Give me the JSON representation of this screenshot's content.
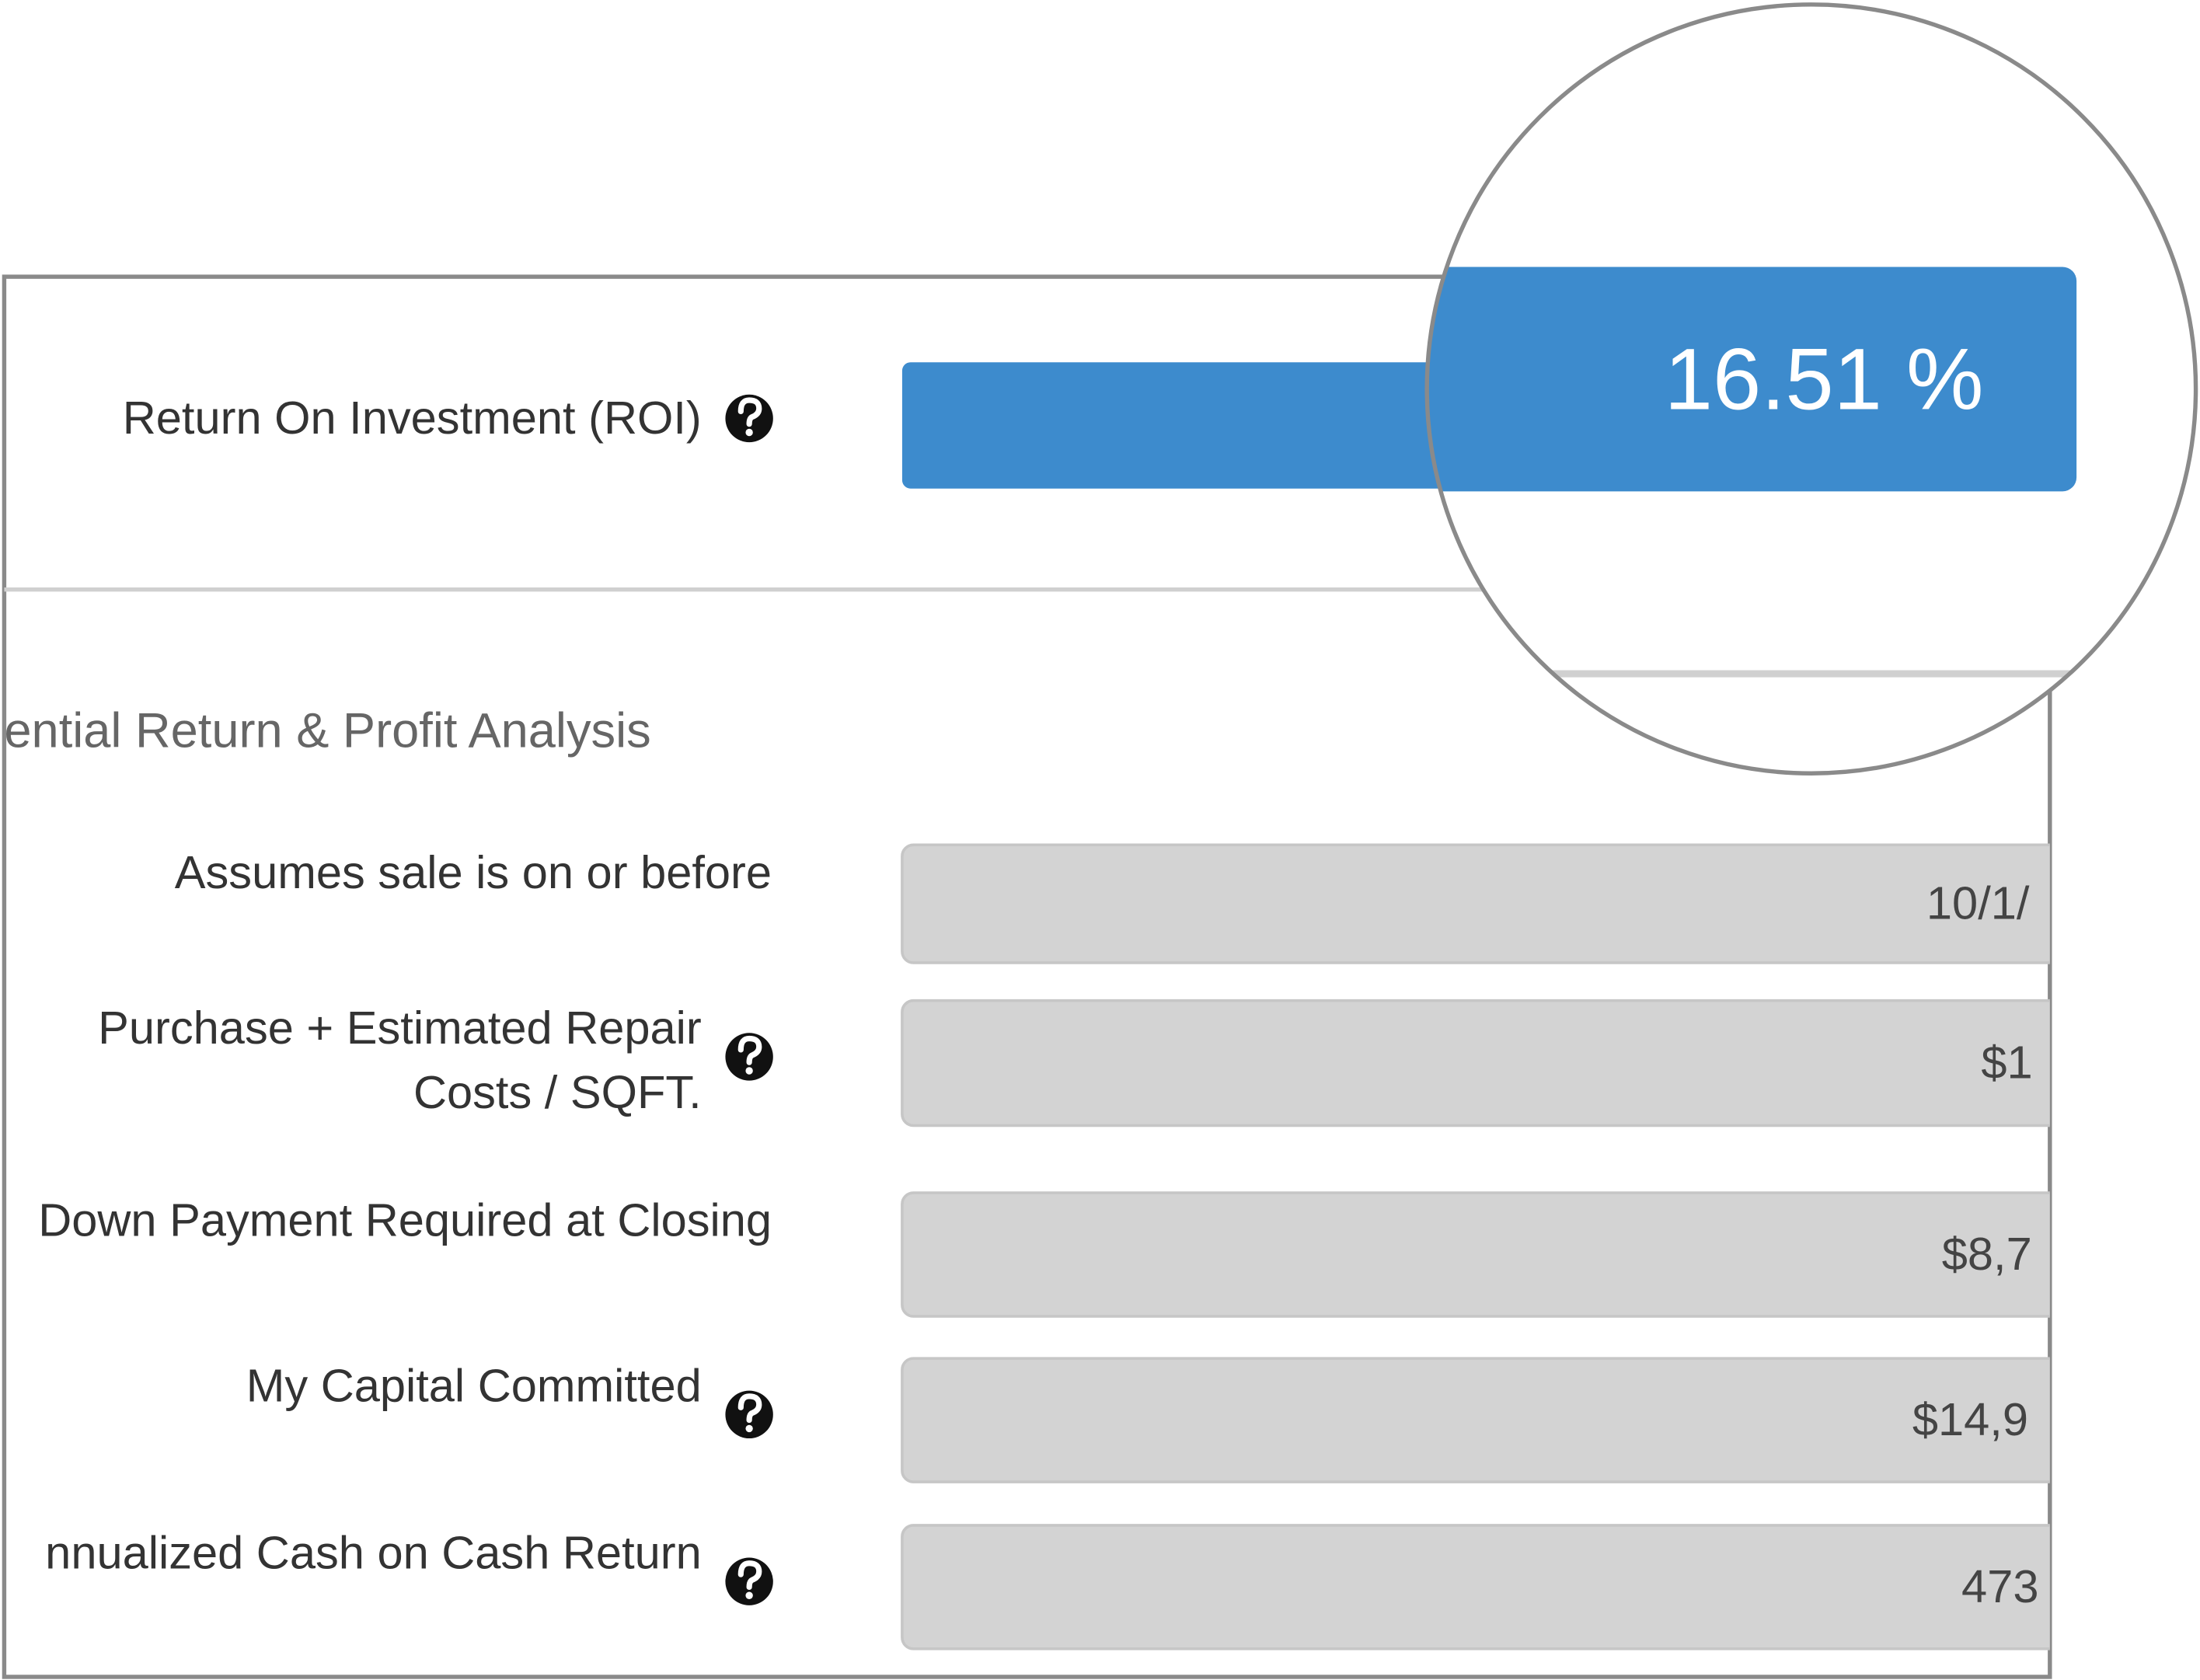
{
  "roi": {
    "label": "Return On Investment (ROI)",
    "value": "16.51 %",
    "help": true
  },
  "section_title": "ential Return & Profit Analysis",
  "rows": [
    {
      "label": [
        "Assumes sale is on or before"
      ],
      "value": "10/1/",
      "help": false
    },
    {
      "label": [
        "Purchase + Estimated Repair",
        "Costs / SQFT."
      ],
      "value": "$1",
      "help": true
    },
    {
      "label": [
        "Down Payment Required at Closing"
      ],
      "value": "$8,7",
      "help": false
    },
    {
      "label": [
        "My Capital Committed"
      ],
      "value": "$14,9",
      "help": true
    },
    {
      "label": [
        "nnualized Cash on Cash Return"
      ],
      "value": "473",
      "help": true
    }
  ]
}
